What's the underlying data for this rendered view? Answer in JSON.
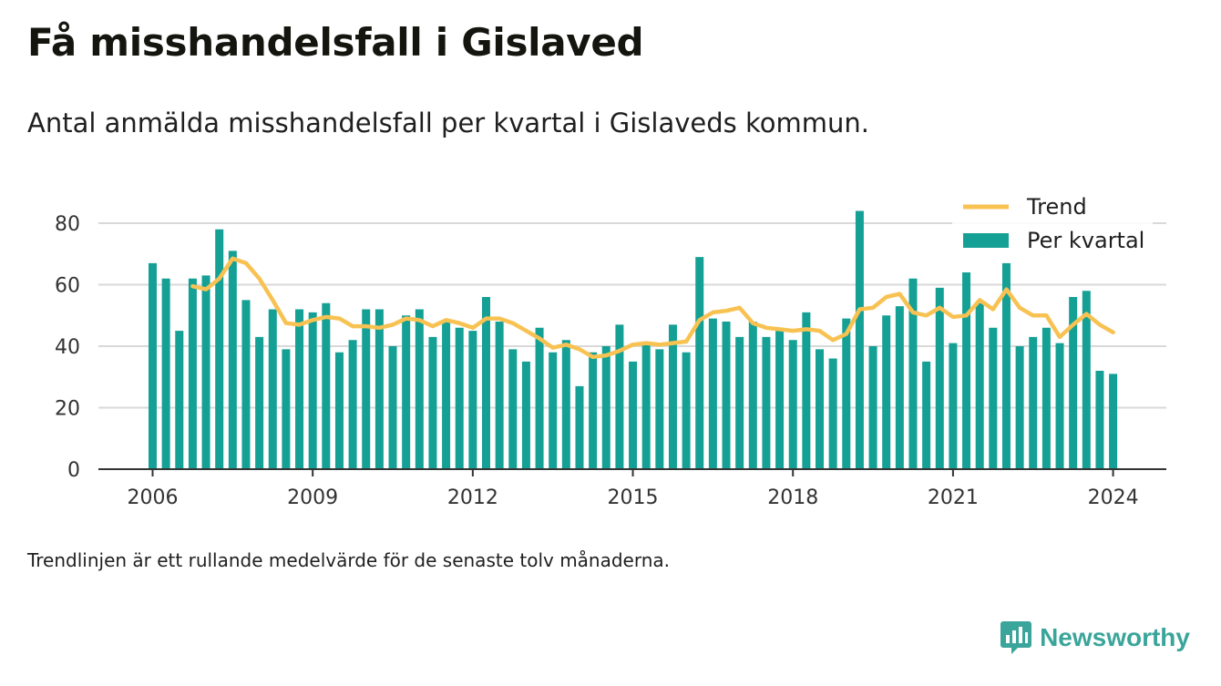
{
  "title": "Få misshandelsfall i Gislaved",
  "subtitle": "Antal anmälda misshandelsfall per kvartal i Gislaveds kommun.",
  "footnote": "Trendlinjen är ett rullande medelvärde för de senaste tolv månaderna.",
  "brand": "Newsworthy",
  "colors": {
    "bars": "#14a095",
    "trend": "#f8c253",
    "grid": "#d9d9d9",
    "axis": "#333333"
  },
  "chart_data": {
    "type": "bar",
    "start": "2006-Q1",
    "ylim": [
      0,
      90
    ],
    "yticks": [
      0,
      20,
      40,
      60,
      80
    ],
    "xticks": [
      "2006",
      "2009",
      "2012",
      "2015",
      "2018",
      "2021",
      "2024"
    ],
    "legend_position": "top-right",
    "series": [
      {
        "name": "Per kvartal",
        "type": "bar",
        "values": [
          67,
          62,
          45,
          62,
          63,
          78,
          71,
          55,
          43,
          52,
          39,
          52,
          51,
          54,
          38,
          42,
          52,
          52,
          40,
          50,
          52,
          43,
          48,
          46,
          45,
          56,
          48,
          39,
          35,
          46,
          38,
          42,
          27,
          38,
          40,
          47,
          35,
          41,
          39,
          47,
          38,
          69,
          49,
          48,
          43,
          48,
          43,
          45,
          42,
          51,
          39,
          36,
          49,
          84,
          40,
          50,
          53,
          62,
          35,
          59,
          41,
          64,
          54,
          46,
          67,
          40,
          43,
          46,
          41,
          56,
          58,
          32,
          31
        ]
      },
      {
        "name": "Trend",
        "type": "line",
        "values": [
          null,
          null,
          null,
          59.5,
          58.5,
          62,
          68.5,
          67,
          62,
          55,
          47.5,
          47,
          48.5,
          49.5,
          49,
          46.5,
          46.5,
          46,
          47,
          49,
          48.5,
          46.5,
          48.5,
          47.5,
          46,
          49,
          49,
          47.5,
          45,
          42.5,
          39.5,
          40.5,
          39,
          36.5,
          37,
          38.5,
          40.5,
          41,
          40.5,
          41,
          41.5,
          48.5,
          51,
          51.5,
          52.5,
          47.5,
          46,
          45.5,
          45,
          45.5,
          45,
          42,
          44,
          52,
          52.5,
          56,
          57,
          51,
          50,
          52.5,
          49.5,
          50,
          55,
          52,
          58.5,
          52.5,
          50,
          50,
          43,
          47,
          50.5,
          47,
          44.5
        ]
      }
    ]
  }
}
